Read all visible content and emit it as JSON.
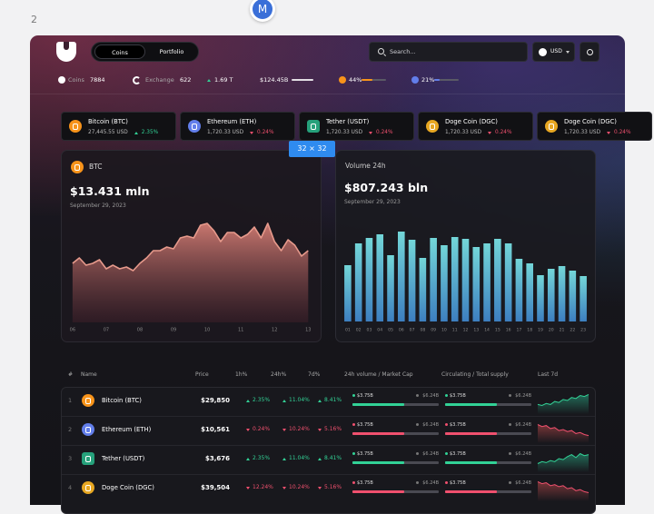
{
  "page_number": "2",
  "avatar": "M",
  "badge": "32 × 32",
  "nav": {
    "tabs": [
      "Coins",
      "Portfolio"
    ],
    "active": 0,
    "search_placeholder": "Search...",
    "currency": "USD"
  },
  "stats": {
    "coins_label": "Coins",
    "coins": "7884",
    "exchange_label": "Exchange",
    "exchange": "622",
    "change": "1.69 T",
    "change_trend": "up",
    "market_cap": "$124.45B",
    "btc_dominance": {
      "value": 44,
      "label": "44%",
      "color": "#f7931a"
    },
    "eth_dominance": {
      "value": 21,
      "label": "21%",
      "color": "#627eea"
    }
  },
  "tickers": [
    {
      "name": "Bitcoin (BTC)",
      "price": "27,445.55 USD",
      "change": "2.35%",
      "trend": "up",
      "icon_color": "#f7931a"
    },
    {
      "name": "Ethereum (ETH)",
      "price": "1,720.33 USD",
      "change": "0.24%",
      "trend": "down",
      "icon_color": "#627eea"
    },
    {
      "name": "Tether (USDT)",
      "price": "1,720.33 USD",
      "change": "0.24%",
      "trend": "down",
      "icon_color": "#26a17b"
    },
    {
      "name": "Doge Coin (DGC)",
      "price": "1,720.33 USD",
      "change": "0.24%",
      "trend": "down",
      "icon_color": "#e7a722"
    },
    {
      "name": "Doge Coin (DGC)",
      "price": "1,720.33 USD",
      "change": "0.24%",
      "trend": "down",
      "icon_color": "#e7a722"
    }
  ],
  "btc_chart": {
    "type": "area",
    "symbol": "BTC",
    "icon_color": "#f7931a",
    "value": "$13.431 mln",
    "date": "September 29, 2023",
    "color": "#e79a8c",
    "x": [
      6,
      6.2,
      6.4,
      6.6,
      6.8,
      7,
      7.2,
      7.4,
      7.6,
      7.8,
      8,
      8.2,
      8.4,
      8.6,
      8.8,
      9,
      9.2,
      9.4,
      9.6,
      9.8,
      10,
      10.2,
      10.4,
      10.6,
      10.8,
      11,
      11.2,
      11.4,
      11.6,
      11.8,
      12,
      12.2,
      12.4,
      12.6,
      12.8,
      13
    ],
    "values": [
      35,
      41,
      33,
      35,
      39,
      29,
      33,
      29,
      31,
      27,
      35,
      41,
      49,
      49,
      53,
      51,
      63,
      65,
      63,
      77,
      79,
      71,
      59,
      69,
      69,
      63,
      67,
      75,
      63,
      79,
      59,
      49,
      61,
      55,
      43,
      49
    ],
    "xlim": [
      5.95,
      13.1
    ],
    "ylim": [
      -30,
      100
    ],
    "xticks": [
      {
        "value": 6,
        "label": "06"
      },
      {
        "value": 7,
        "label": "07"
      },
      {
        "value": 8,
        "label": "08"
      },
      {
        "value": 9,
        "label": "09"
      },
      {
        "value": 10,
        "label": "10"
      },
      {
        "value": 11,
        "label": "11"
      },
      {
        "value": 12,
        "label": "12"
      },
      {
        "value": 13,
        "label": "13"
      }
    ]
  },
  "volume_chart": {
    "type": "bar",
    "title": "Volume 24h",
    "value": "$807.243 bln",
    "date": "September 29, 2023",
    "color_top": "#73d6d8",
    "color_bottom": "#3d7fc0",
    "categories": [
      "01",
      "02",
      "03",
      "04",
      "05",
      "06",
      "07",
      "08",
      "09",
      "10",
      "11",
      "12",
      "13",
      "14",
      "15",
      "16",
      "17",
      "18",
      "19",
      "20",
      "21",
      "22",
      "23"
    ],
    "values": [
      62,
      86,
      92,
      96,
      73,
      99,
      90,
      70,
      92,
      84,
      93,
      91,
      82,
      86,
      91,
      86,
      69,
      64,
      51,
      58,
      61,
      56,
      50
    ],
    "ylim": [
      0,
      100
    ]
  },
  "table": {
    "columns": [
      "#",
      "Name",
      "Price",
      "1h%",
      "24h%",
      "7d%",
      "24h volume / Market Cap",
      "Circulating / Total supply",
      "Last 7d"
    ],
    "spark_ylim": [
      0,
      20
    ],
    "rows": [
      {
        "rank": 1,
        "name": "Bitcoin (BTC)",
        "icon_color": "#f7931a",
        "price": "$29,850",
        "h1": {
          "label": "2.35%",
          "trend": "up"
        },
        "h24": {
          "label": "11.04%",
          "trend": "up"
        },
        "d7": {
          "label": "8.41%",
          "trend": "up"
        },
        "volume": {
          "value": 3.75,
          "label": "$3.75B"
        },
        "market_cap": {
          "value": 6.24,
          "label": "$6.24B"
        },
        "circulating": {
          "value": 3.75,
          "label": "$3.75B"
        },
        "total_supply": {
          "value": 6.24,
          "label": "$6.24B"
        },
        "last_7d": [
          6,
          5,
          7,
          6,
          9,
          8,
          11,
          10,
          13,
          12,
          15,
          14,
          16
        ]
      },
      {
        "rank": 2,
        "name": "Ethereum (ETH)",
        "icon_color": "#627eea",
        "price": "$10,561",
        "h1": {
          "label": "0.24%",
          "trend": "down"
        },
        "h24": {
          "label": "10.24%",
          "trend": "down"
        },
        "d7": {
          "label": "5.16%",
          "trend": "down"
        },
        "volume": {
          "value": 3.75,
          "label": "$3.75B"
        },
        "market_cap": {
          "value": 6.24,
          "label": "$6.24B"
        },
        "circulating": {
          "value": 3.75,
          "label": "$3.75B"
        },
        "total_supply": {
          "value": 6.24,
          "label": "$6.24B"
        },
        "last_7d": [
          15,
          13,
          14,
          11,
          12,
          9,
          10,
          8,
          9,
          6,
          7,
          5,
          4
        ]
      },
      {
        "rank": 3,
        "name": "Tether (USDT)",
        "icon_color": "#26a17b",
        "price": "$3,676",
        "h1": {
          "label": "2.35%",
          "trend": "up"
        },
        "h24": {
          "label": "11.04%",
          "trend": "up"
        },
        "d7": {
          "label": "8.41%",
          "trend": "up"
        },
        "volume": {
          "value": 3.75,
          "label": "$3.75B"
        },
        "market_cap": {
          "value": 6.24,
          "label": "$6.24B"
        },
        "circulating": {
          "value": 3.75,
          "label": "$3.75B"
        },
        "total_supply": {
          "value": 6.24,
          "label": "$6.24B"
        },
        "last_7d": [
          5,
          7,
          6,
          8,
          7,
          10,
          9,
          12,
          14,
          11,
          15,
          13,
          14
        ]
      },
      {
        "rank": 4,
        "name": "Doge Coin (DGC)",
        "icon_color": "#e7a722",
        "price": "$39,504",
        "h1": {
          "label": "12.24%",
          "trend": "down"
        },
        "h24": {
          "label": "10.24%",
          "trend": "down"
        },
        "d7": {
          "label": "5.16%",
          "trend": "down"
        },
        "volume": {
          "value": 3.75,
          "label": "$3.75B"
        },
        "market_cap": {
          "value": 6.24,
          "label": "$6.24B"
        },
        "circulating": {
          "value": 3.75,
          "label": "$3.75B"
        },
        "total_supply": {
          "value": 6.24,
          "label": "$6.24B"
        },
        "last_7d": [
          16,
          14,
          15,
          12,
          13,
          11,
          12,
          9,
          10,
          7,
          8,
          6,
          5
        ]
      }
    ]
  }
}
